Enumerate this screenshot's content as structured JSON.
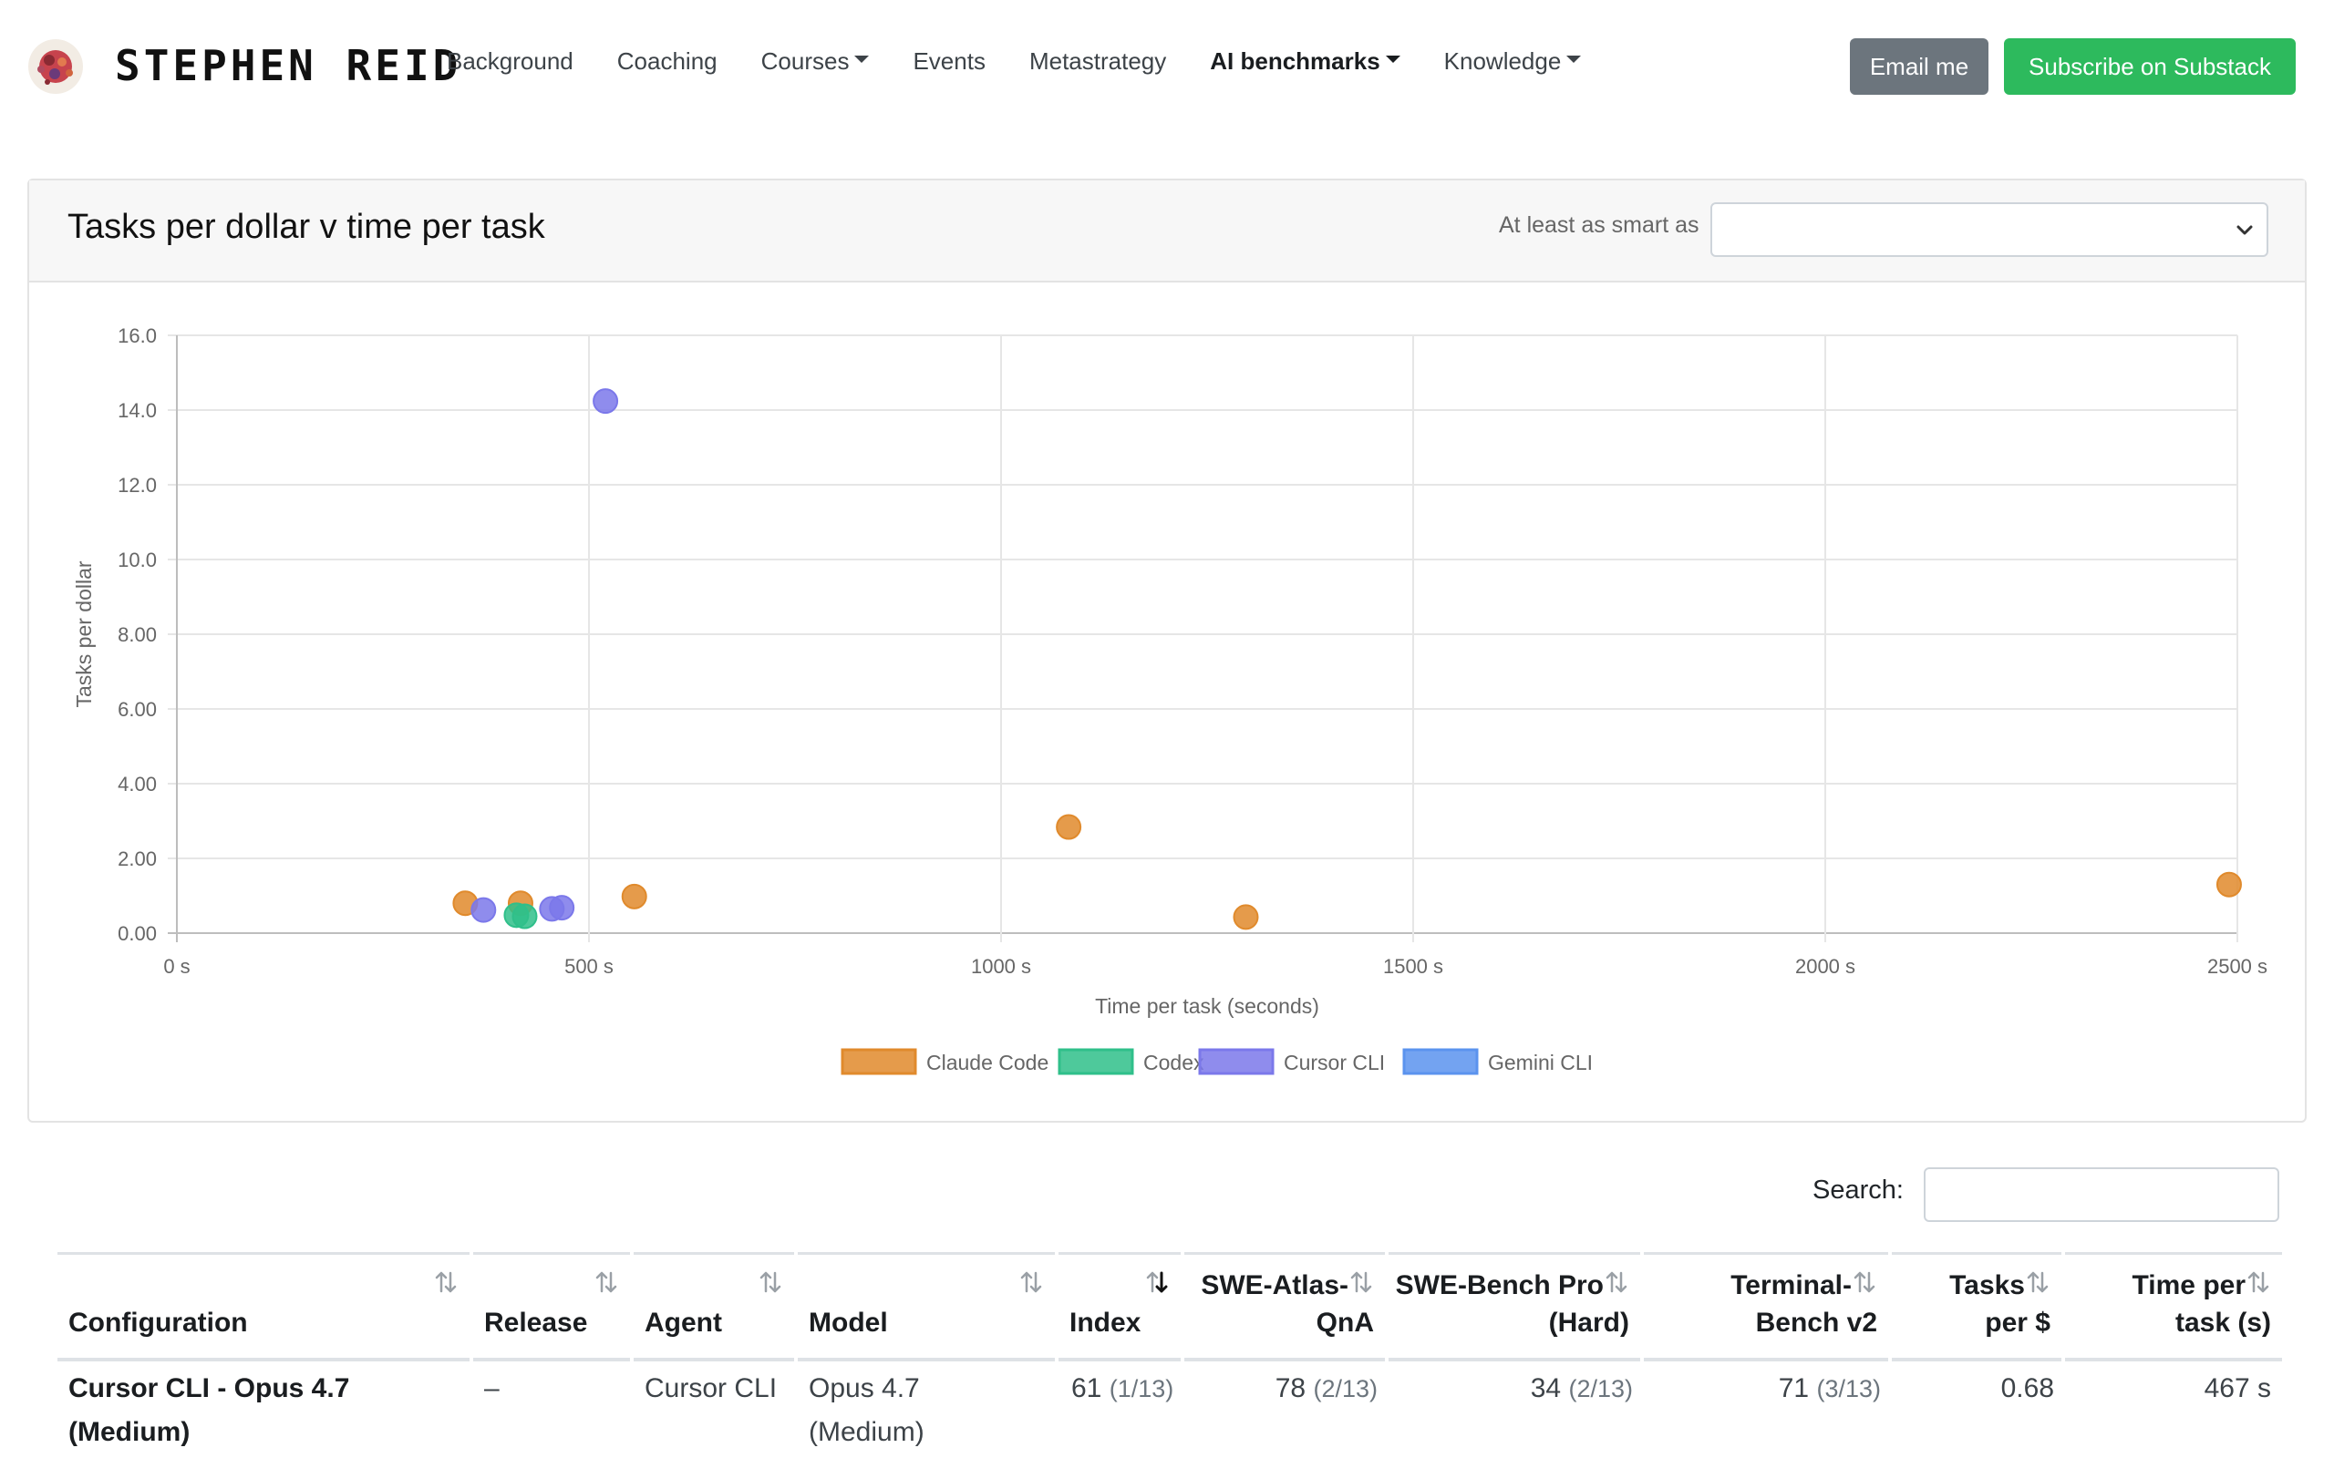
{
  "nav": {
    "logo_text": "STEPHEN REID",
    "links": [
      {
        "label": "Background",
        "dropdown": false,
        "active": false
      },
      {
        "label": "Coaching",
        "dropdown": false,
        "active": false
      },
      {
        "label": "Courses",
        "dropdown": true,
        "active": false
      },
      {
        "label": "Events",
        "dropdown": false,
        "active": false
      },
      {
        "label": "Metastrategy",
        "dropdown": false,
        "active": false
      },
      {
        "label": "AI benchmarks",
        "dropdown": true,
        "active": true
      },
      {
        "label": "Knowledge",
        "dropdown": true,
        "active": false
      }
    ],
    "email_button": "Email me",
    "subscribe_button": "Subscribe on Substack"
  },
  "card": {
    "title": "Tasks per dollar v time per task",
    "filter_label": "At least as smart as",
    "filter_value": ""
  },
  "chart_data": {
    "type": "scatter",
    "title": "",
    "xlabel": "Time per task (seconds)",
    "ylabel": "Tasks per dollar",
    "xlim": [
      0,
      2500
    ],
    "ylim": [
      0,
      16
    ],
    "x_ticks": [
      "0 s",
      "500 s",
      "1000 s",
      "1500 s",
      "2000 s",
      "2500 s"
    ],
    "y_ticks": [
      "0.00",
      "2.00",
      "4.00",
      "6.00",
      "8.00",
      "10.0",
      "12.0",
      "14.0",
      "16.0"
    ],
    "grid": true,
    "legend_position": "bottom",
    "series": [
      {
        "name": "Claude Code",
        "color": "#e08a2c",
        "points": [
          [
            350,
            0.8
          ],
          [
            417,
            0.8
          ],
          [
            555,
            0.98
          ],
          [
            1082,
            2.84
          ],
          [
            1297,
            0.43
          ],
          [
            2490,
            1.3
          ]
        ]
      },
      {
        "name": "Codex",
        "color": "#2fbf8a",
        "points": [
          [
            412,
            0.48
          ],
          [
            422,
            0.45
          ]
        ]
      },
      {
        "name": "Cursor CLI",
        "color": "#7b78ea",
        "points": [
          [
            372,
            0.62
          ],
          [
            455,
            0.65
          ],
          [
            467,
            0.68
          ],
          [
            520,
            14.24
          ]
        ]
      },
      {
        "name": "Gemini CLI",
        "color": "#5b93ee",
        "points": []
      }
    ]
  },
  "search": {
    "label": "Search:",
    "value": ""
  },
  "table": {
    "columns": [
      {
        "label": "Configuration",
        "sort": "none"
      },
      {
        "label": "Release",
        "sort": "none"
      },
      {
        "label": "Agent",
        "sort": "none"
      },
      {
        "label": "Model",
        "sort": "none"
      },
      {
        "label": "Index",
        "sort": "desc"
      },
      {
        "label_l1": "SWE-Atlas-",
        "label_l2": "QnA",
        "sort": "none"
      },
      {
        "label_l1": "SWE-Bench Pro",
        "label_l2": "(Hard)",
        "sort": "none"
      },
      {
        "label_l1": "Terminal-",
        "label_l2": "Bench v2",
        "sort": "none"
      },
      {
        "label_l1": "Tasks",
        "label_l2": "per $",
        "sort": "none"
      },
      {
        "label_l1": "Time per",
        "label_l2": "task (s)",
        "sort": "none"
      }
    ],
    "rows": [
      {
        "config_l1": "Cursor CLI - Opus 4.7",
        "config_l2": "(Medium)",
        "release": "–",
        "agent": "Cursor CLI",
        "model_l1": "Opus 4.7",
        "model_l2": "(Medium)",
        "index": "61",
        "index_rank": "(1/13)",
        "swe_atlas": "78",
        "swe_atlas_rank": "(2/13)",
        "swe_bench": "34",
        "swe_bench_rank": "(2/13)",
        "terminal": "71",
        "terminal_rank": "(3/13)",
        "tasks_per_dollar": "0.68",
        "time_per_task": "467 s"
      }
    ]
  }
}
